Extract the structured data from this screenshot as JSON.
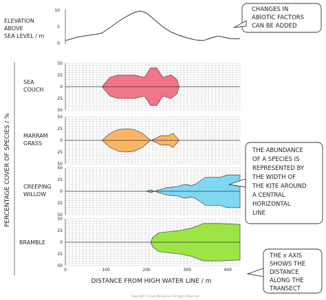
{
  "chart_data": {
    "type": "area",
    "xlabel": "DISTANCE FROM HIGH WATER LINE / m",
    "ylabel": "PERCENTAGE COVER OF SPECIES / %",
    "x_ticks": [
      0,
      100,
      200,
      300,
      400
    ],
    "xlim": [
      0,
      430
    ],
    "cover_ticks": [
      "50",
      "25",
      "0",
      "25",
      "50"
    ],
    "cover_range": [
      -50,
      50
    ],
    "elevation": {
      "label": "ELEVATION ABOVE SEA LEVEL / m",
      "label_lines": [
        "ELEVATION",
        "ABOVE",
        "SEA LEVEL / m"
      ],
      "ticks": [
        "10",
        "5",
        "0"
      ],
      "ylim": [
        0,
        10
      ],
      "points": [
        [
          0,
          1
        ],
        [
          15,
          1.5
        ],
        [
          30,
          2
        ],
        [
          45,
          2.3
        ],
        [
          60,
          2.6
        ],
        [
          75,
          2.8
        ],
        [
          90,
          3.2
        ],
        [
          110,
          4.8
        ],
        [
          130,
          6.5
        ],
        [
          150,
          8
        ],
        [
          170,
          9.2
        ],
        [
          185,
          9.6
        ],
        [
          200,
          9
        ],
        [
          220,
          7
        ],
        [
          240,
          5
        ],
        [
          260,
          3.5
        ],
        [
          280,
          2.5
        ],
        [
          300,
          1.8
        ],
        [
          320,
          1.2
        ],
        [
          340,
          1
        ],
        [
          360,
          1.8
        ],
        [
          375,
          2.3
        ],
        [
          390,
          2
        ],
        [
          405,
          1.6
        ],
        [
          420,
          1.5
        ],
        [
          430,
          1.6
        ]
      ]
    },
    "series": [
      {
        "name": "SEA COUCH",
        "label_lines": [
          "SEA",
          "COUCH"
        ],
        "color": "#f47489",
        "points": [
          [
            90,
            0
          ],
          [
            110,
            20
          ],
          [
            130,
            25
          ],
          [
            150,
            25
          ],
          [
            170,
            25
          ],
          [
            195,
            20
          ],
          [
            210,
            40
          ],
          [
            225,
            40
          ],
          [
            240,
            20
          ],
          [
            260,
            25
          ],
          [
            275,
            15
          ],
          [
            280,
            0
          ]
        ]
      },
      {
        "name": "MARRAM GRASS",
        "label_lines": [
          "MARRAM",
          "GRASS"
        ],
        "color": "#fbb664",
        "points": [
          [
            90,
            0
          ],
          [
            110,
            15
          ],
          [
            130,
            23
          ],
          [
            150,
            25
          ],
          [
            170,
            23
          ],
          [
            190,
            15
          ],
          [
            210,
            0
          ],
          [
            225,
            5
          ],
          [
            235,
            10
          ],
          [
            255,
            10
          ],
          [
            265,
            15
          ],
          [
            280,
            0
          ]
        ]
      },
      {
        "name": "CREEPING WILLOW",
        "label_lines": [
          "CREEPING",
          "WILLOW"
        ],
        "color": "#7fd7f2",
        "points": [
          [
            200,
            0
          ],
          [
            210,
            3
          ],
          [
            220,
            0
          ],
          [
            230,
            3
          ],
          [
            250,
            8
          ],
          [
            275,
            10
          ],
          [
            295,
            15
          ],
          [
            310,
            12
          ],
          [
            320,
            15
          ],
          [
            345,
            30
          ],
          [
            360,
            30
          ],
          [
            380,
            30
          ],
          [
            400,
            35
          ],
          [
            430,
            35
          ],
          [
            430,
            -35
          ],
          [
            400,
            -35
          ],
          [
            380,
            -30
          ],
          [
            360,
            -30
          ],
          [
            345,
            -30
          ],
          [
            320,
            -15
          ],
          [
            310,
            -12
          ],
          [
            295,
            -15
          ],
          [
            275,
            -10
          ],
          [
            250,
            -8
          ],
          [
            230,
            -3
          ],
          [
            220,
            0
          ],
          [
            210,
            -3
          ]
        ]
      },
      {
        "name": "BRAMBLE",
        "label_lines": [
          "BRAMBLE"
        ],
        "color": "#9de545",
        "points": [
          [
            210,
            0
          ],
          [
            215,
            10
          ],
          [
            230,
            20
          ],
          [
            280,
            25
          ],
          [
            310,
            30
          ],
          [
            340,
            40
          ],
          [
            380,
            40
          ],
          [
            430,
            38
          ],
          [
            430,
            -38
          ],
          [
            380,
            -40
          ],
          [
            340,
            -40
          ],
          [
            310,
            -30
          ],
          [
            280,
            -25
          ],
          [
            230,
            -20
          ],
          [
            215,
            -10
          ]
        ]
      }
    ],
    "annotations": {
      "abiotic": [
        "CHANGES IN",
        "ABIOTIC FACTORS",
        "CAN BE ADDED"
      ],
      "abundance": [
        "THE ABUNDANCE",
        "OF A SPECIES IS",
        "REPRESENTED BY",
        "THE WIDTH OF",
        "THE KITE AROUND",
        "A CENTRAL",
        "HORIZONTAL",
        "LINE"
      ],
      "xaxis": [
        "THE x AXIS",
        "SHOWS THE",
        "DISTANCE",
        "ALONG THE",
        "TRANSECT"
      ]
    }
  },
  "footer": "Copyright © Save My Exams. All Rights Reserved"
}
